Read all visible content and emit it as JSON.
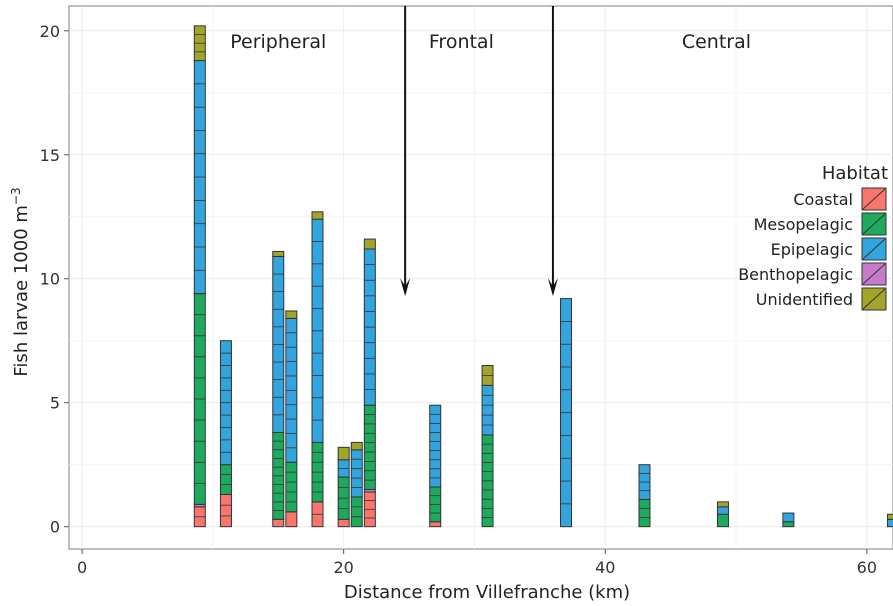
{
  "chart_data": {
    "type": "bar",
    "stacked": true,
    "xlabel": "Distance from Villefranche (km)",
    "ylabel": "Fish larvae 1000 m",
    "ylabel_sup": "−3",
    "xlim": [
      -1,
      62
    ],
    "ylim": [
      -0.9,
      21
    ],
    "xticks": [
      0,
      20,
      40,
      60
    ],
    "yticks": [
      0,
      5,
      10,
      15,
      20
    ],
    "grid": true,
    "zones": [
      {
        "label": "Peripheral",
        "x": 15
      },
      {
        "label": "Frontal",
        "x": 29
      },
      {
        "label": "Central",
        "x": 48.5
      }
    ],
    "arrows": [
      {
        "x": 24.7,
        "y_top": 21,
        "y_tip": 9.3
      },
      {
        "x": 36,
        "y_top": 21,
        "y_tip": 9.3
      }
    ],
    "legend": {
      "title": "Habitat",
      "position": "right",
      "items": [
        {
          "name": "Coastal",
          "color": "#F8766D"
        },
        {
          "name": "Mesopelagic",
          "color": "#1DAA5E"
        },
        {
          "name": "Epipelagic",
          "color": "#33A5DE"
        },
        {
          "name": "Benthopelagic",
          "color": "#C77CCB"
        },
        {
          "name": "Unidentified",
          "color": "#A3A52A"
        }
      ]
    },
    "stations": [
      {
        "x": 9,
        "coastal": 0.8,
        "mesopelagic": 8.5,
        "epipelagic": 9.4,
        "benthopelagic": 0.1,
        "unidentified": 1.4
      },
      {
        "x": 11,
        "coastal": 1.3,
        "mesopelagic": 1.2,
        "epipelagic": 5.0,
        "benthopelagic": 0.0,
        "unidentified": 0.0
      },
      {
        "x": 15,
        "coastal": 0.3,
        "mesopelagic": 3.5,
        "epipelagic": 7.1,
        "benthopelagic": 0.0,
        "unidentified": 0.2
      },
      {
        "x": 16,
        "coastal": 0.6,
        "mesopelagic": 2.0,
        "epipelagic": 5.8,
        "benthopelagic": 0.0,
        "unidentified": 0.3
      },
      {
        "x": 18,
        "coastal": 1.0,
        "mesopelagic": 2.4,
        "epipelagic": 9.0,
        "benthopelagic": 0.0,
        "unidentified": 0.3
      },
      {
        "x": 20,
        "coastal": 0.3,
        "mesopelagic": 1.7,
        "epipelagic": 0.7,
        "benthopelagic": 0.0,
        "unidentified": 0.5
      },
      {
        "x": 21,
        "coastal": 0.0,
        "mesopelagic": 1.2,
        "epipelagic": 1.9,
        "benthopelagic": 0.0,
        "unidentified": 0.3
      },
      {
        "x": 22,
        "coastal": 1.4,
        "mesopelagic": 3.4,
        "epipelagic": 6.3,
        "benthopelagic": 0.1,
        "unidentified": 0.4
      },
      {
        "x": 27,
        "coastal": 0.2,
        "mesopelagic": 1.4,
        "epipelagic": 3.3,
        "benthopelagic": 0.0,
        "unidentified": 0.0
      },
      {
        "x": 31,
        "coastal": 0.0,
        "mesopelagic": 3.7,
        "epipelagic": 2.0,
        "benthopelagic": 0.0,
        "unidentified": 0.8
      },
      {
        "x": 37,
        "coastal": 0.0,
        "mesopelagic": 0.0,
        "epipelagic": 9.2,
        "benthopelagic": 0.0,
        "unidentified": 0.0
      },
      {
        "x": 43,
        "coastal": 0.0,
        "mesopelagic": 1.1,
        "epipelagic": 1.4,
        "benthopelagic": 0.0,
        "unidentified": 0.0
      },
      {
        "x": 49,
        "coastal": 0.0,
        "mesopelagic": 0.5,
        "epipelagic": 0.3,
        "benthopelagic": 0.0,
        "unidentified": 0.2
      },
      {
        "x": 54,
        "coastal": 0.0,
        "mesopelagic": 0.2,
        "epipelagic": 0.35,
        "benthopelagic": 0.0,
        "unidentified": 0.0
      },
      {
        "x": 62,
        "coastal": 0.0,
        "mesopelagic": 0.0,
        "epipelagic": 0.3,
        "benthopelagic": 0.0,
        "unidentified": 0.2
      }
    ]
  }
}
